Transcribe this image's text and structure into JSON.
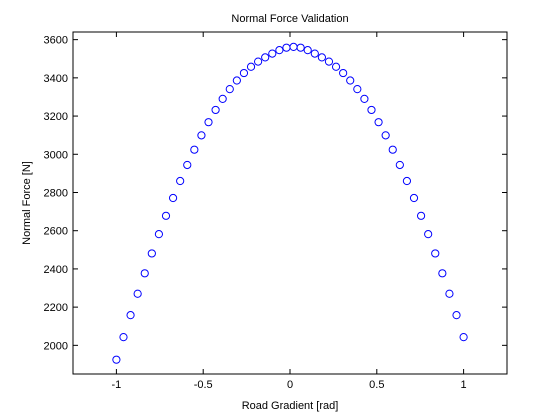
{
  "chart_data": {
    "type": "scatter",
    "title": "Normal Force Validation",
    "xlabel": "Road Gradient [rad]",
    "ylabel": "Normal Force [N]",
    "xlim": [
      -1.25,
      1.25
    ],
    "ylim": [
      1850,
      3640
    ],
    "xticks": [
      -1,
      -0.5,
      0,
      0.5,
      1
    ],
    "xtick_labels": [
      "-1",
      "-0.5",
      "0",
      "0.5",
      "1"
    ],
    "yticks": [
      2000,
      2200,
      2400,
      2600,
      2800,
      3000,
      3200,
      3400,
      3600
    ],
    "ytick_labels": [
      "2000",
      "2200",
      "2400",
      "2600",
      "2800",
      "3000",
      "3200",
      "3400",
      "3600"
    ],
    "grid": false,
    "marker": "circle-open",
    "color": "#0000ff",
    "series": [
      {
        "x": [
          -1.0,
          -0.9592,
          -0.9184,
          -0.8776,
          -0.8367,
          -0.7959,
          -0.7551,
          -0.7143,
          -0.6735,
          -0.6327,
          -0.5918,
          -0.551,
          -0.5102,
          -0.4694,
          -0.4286,
          -0.3878,
          -0.3469,
          -0.3061,
          -0.2653,
          -0.2245,
          -0.1837,
          -0.1429,
          -0.102,
          -0.0612,
          -0.0204,
          0.0204,
          0.0612,
          0.102,
          0.1429,
          0.1837,
          0.2245,
          0.2653,
          0.3061,
          0.3469,
          0.3878,
          0.4286,
          0.4694,
          0.5102,
          0.551,
          0.5918,
          0.6327,
          0.6735,
          0.7143,
          0.7551,
          0.7959,
          0.8367,
          0.8776,
          0.9184,
          0.9592,
          1.0
        ],
        "y": [
          1925,
          2043,
          2158,
          2270,
          2377,
          2481,
          2582,
          2678,
          2771,
          2860,
          2944,
          3024,
          3099,
          3168,
          3232,
          3290,
          3341,
          3386,
          3425,
          3458,
          3485,
          3507,
          3527,
          3545,
          3558,
          3562,
          3558,
          3545,
          3527,
          3507,
          3485,
          3458,
          3425,
          3386,
          3341,
          3290,
          3232,
          3168,
          3099,
          3024,
          2944,
          2860,
          2771,
          2678,
          2582,
          2481,
          2377,
          2270,
          2158,
          2043
        ]
      }
    ]
  }
}
